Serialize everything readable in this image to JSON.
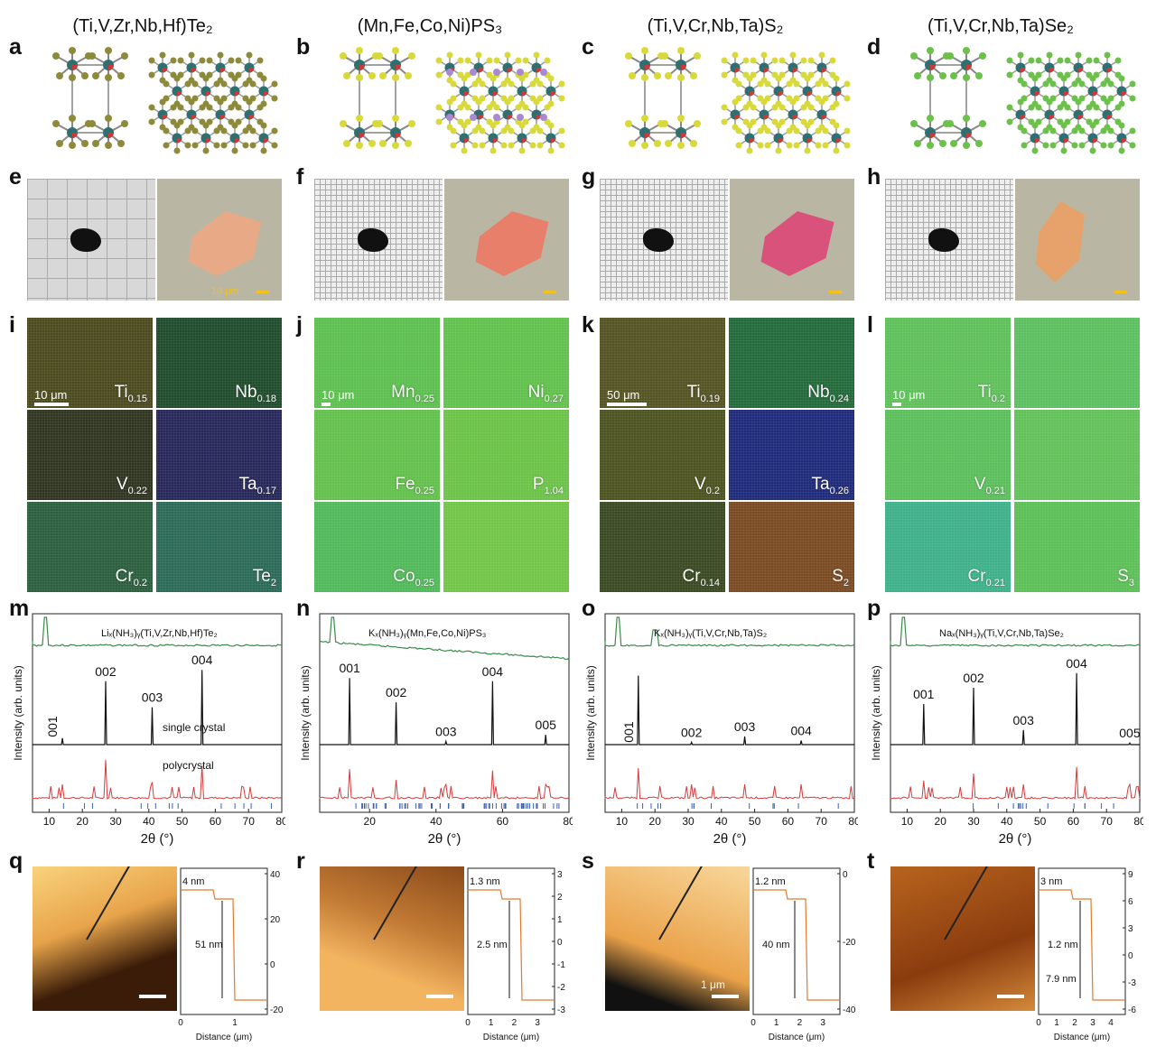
{
  "columns": [
    {
      "title": "(Ti,V,Zr,Nb,Hf)Te₂",
      "labels": {
        "struct": "a",
        "photo": "e",
        "eds": "i",
        "xrd": "m",
        "afm": "q"
      },
      "anion_color": "#8d8a3a",
      "photo_scale": "10 μm",
      "eds_scale": "10 μm",
      "eds_tiles": [
        {
          "label": "Ti",
          "sub": "0.15",
          "color": "#4b4a1f"
        },
        {
          "label": "Nb",
          "sub": "0.18",
          "color": "#1f4d2c"
        },
        {
          "label": "V",
          "sub": "0.22",
          "color": "#2f3520"
        },
        {
          "label": "Ta",
          "sub": "0.17",
          "color": "#27285a"
        },
        {
          "label": "Cr",
          "sub": "0.2",
          "color": "#2b5f3e"
        },
        {
          "label": "Te",
          "sub": "2",
          "color": "#2b6a57"
        }
      ],
      "xrd": {
        "formula": "Liₓ(NH₃)ᵧ(Ti,V,Zr,Nb,Hf)Te₂",
        "peaks": [
          {
            "label": "001",
            "x": 14,
            "h": 0.08
          },
          {
            "label": "002",
            "x": 27,
            "h": 0.78
          },
          {
            "label": "003",
            "x": 41,
            "h": 0.46
          },
          {
            "label": "004",
            "x": 56,
            "h": 0.92
          }
        ],
        "texts": [
          "single crystal",
          "polycrystal"
        ],
        "ticks": [
          10,
          20,
          30,
          40,
          50,
          60,
          70,
          80
        ]
      },
      "afm": {
        "annotations": [
          "4 nm",
          "51 nm"
        ],
        "yticks": [
          40,
          20,
          0,
          -20
        ],
        "xticks": [
          0,
          1
        ]
      }
    },
    {
      "title": "(Mn,Fe,Co,Ni)PS₃",
      "labels": {
        "struct": "b",
        "photo": "f",
        "eds": "j",
        "xrd": "n",
        "afm": "r"
      },
      "anion_color": "#d8d93a",
      "photo_scale": "",
      "eds_scale": "10 μm",
      "eds_tiles": [
        {
          "label": "Mn",
          "sub": "0.25",
          "color": "#5cbf4f"
        },
        {
          "label": "Ni",
          "sub": "0.27",
          "color": "#62c14c"
        },
        {
          "label": "Fe",
          "sub": "0.25",
          "color": "#63c04c"
        },
        {
          "label": "P",
          "sub": "1.04",
          "color": "#6bc348"
        },
        {
          "label": "Co",
          "sub": "0.25",
          "color": "#52b95a"
        },
        {
          "label": "",
          "sub": "",
          "color": "#71c546"
        }
      ],
      "xrd": {
        "formula": "Kₓ(NH₃)ᵧ(Mn,Fe,Co,Ni)PS₃",
        "peaks": [
          {
            "label": "001",
            "x": 14,
            "h": 0.82
          },
          {
            "label": "002",
            "x": 28,
            "h": 0.52
          },
          {
            "label": "003",
            "x": 43,
            "h": 0.04
          },
          {
            "label": "004",
            "x": 57,
            "h": 0.78
          },
          {
            "label": "005",
            "x": 73,
            "h": 0.12
          }
        ],
        "texts": [],
        "ticks": [
          20,
          40,
          60,
          80
        ]
      },
      "afm": {
        "annotations": [
          "1.3 nm",
          "2.5 nm"
        ],
        "yticks": [
          3,
          2,
          1,
          0,
          -1,
          -2,
          -3
        ],
        "xticks": [
          0,
          1,
          2,
          3
        ]
      }
    },
    {
      "title": "(Ti,V,Cr,Nb,Ta)S₂",
      "labels": {
        "struct": "c",
        "photo": "g",
        "eds": "k",
        "xrd": "o",
        "afm": "s"
      },
      "anion_color": "#d8d93a",
      "photo_scale": "",
      "eds_scale": "50 μm",
      "eds_tiles": [
        {
          "label": "Ti",
          "sub": "0.19",
          "color": "#535323"
        },
        {
          "label": "Nb",
          "sub": "0.24",
          "color": "#236a3a"
        },
        {
          "label": "V",
          "sub": "0.2",
          "color": "#4c5320"
        },
        {
          "label": "Ta",
          "sub": "0.26",
          "color": "#1f2a7a"
        },
        {
          "label": "Cr",
          "sub": "0.14",
          "color": "#3a4a22"
        },
        {
          "label": "S",
          "sub": "2",
          "color": "#7a4a22"
        }
      ],
      "xrd": {
        "formula": "Kₓ(NH₃)ᵧ(Ti,V,Cr,Nb,Ta)S₂",
        "peaks": [
          {
            "label": "001",
            "x": 15,
            "h": 0.85
          },
          {
            "label": "002",
            "x": 31,
            "h": 0.03
          },
          {
            "label": "003",
            "x": 47,
            "h": 0.1
          },
          {
            "label": "004",
            "x": 64,
            "h": 0.05
          }
        ],
        "texts": [],
        "ticks": [
          10,
          20,
          30,
          40,
          50,
          60,
          70,
          80
        ]
      },
      "afm": {
        "annotations": [
          "1.2 nm",
          "40 nm",
          "1 μm"
        ],
        "yticks": [
          0,
          -20,
          -40
        ],
        "xticks": [
          0,
          1,
          2,
          3
        ]
      }
    },
    {
      "title": "(Ti,V,Cr,Nb,Ta)Se₂",
      "labels": {
        "struct": "d",
        "photo": "h",
        "eds": "l",
        "xrd": "p",
        "afm": "t"
      },
      "anion_color": "#6cc14a",
      "photo_scale": "",
      "eds_scale": "10 μm",
      "eds_tiles": [
        {
          "label": "Ti",
          "sub": "0.2",
          "color": "#5fc05a"
        },
        {
          "label": "",
          "sub": "",
          "color": "#5cbf5f"
        },
        {
          "label": "V",
          "sub": "0.21",
          "color": "#5bbe5b"
        },
        {
          "label": "",
          "sub": "",
          "color": "#62c159"
        },
        {
          "label": "Cr",
          "sub": "0.21",
          "color": "#3fb08a"
        },
        {
          "label": "S",
          "sub": "3",
          "color": "#5cbf57"
        }
      ],
      "xrd": {
        "formula": "Naₓ(NH₃)ᵧ(Ti,V,Cr,Nb,Ta)Se₂",
        "peaks": [
          {
            "label": "001",
            "x": 15,
            "h": 0.5
          },
          {
            "label": "002",
            "x": 30,
            "h": 0.7
          },
          {
            "label": "003",
            "x": 45,
            "h": 0.18
          },
          {
            "label": "004",
            "x": 61,
            "h": 0.88
          },
          {
            "label": "005",
            "x": 77,
            "h": 0.02
          }
        ],
        "texts": [],
        "ticks": [
          10,
          20,
          30,
          40,
          50,
          60,
          70,
          80
        ]
      },
      "afm": {
        "annotations": [
          "3 nm",
          "1.2 nm",
          "7.9 nm"
        ],
        "yticks": [
          9,
          6,
          3,
          0,
          -3,
          -6
        ],
        "xticks": [
          0,
          1,
          2,
          3,
          4
        ]
      }
    }
  ],
  "common": {
    "xrd_ylabel": "Intensity (arb. units)",
    "xrd_xlabel": "2θ (°)",
    "afm_xlabel": "Distance (μm)"
  }
}
